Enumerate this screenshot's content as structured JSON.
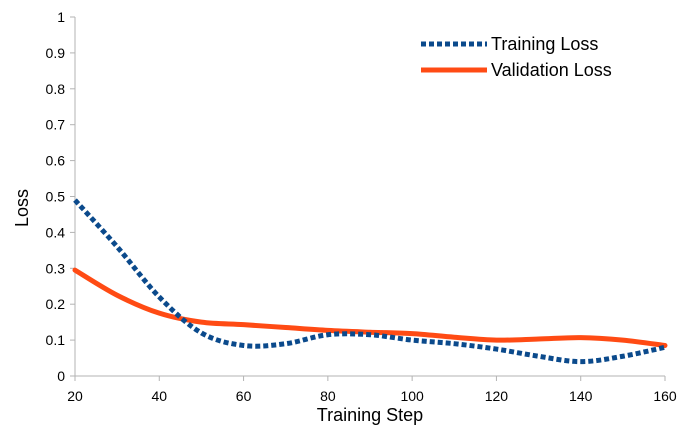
{
  "chart_data": {
    "type": "line",
    "xlabel": "Training Step",
    "ylabel": "Loss",
    "xlim": [
      20,
      160
    ],
    "ylim": [
      0,
      1
    ],
    "x_ticks": [
      "20",
      "40",
      "60",
      "80",
      "100",
      "120",
      "140",
      "160"
    ],
    "y_ticks": [
      "0",
      "0.1",
      "0.2",
      "0.3",
      "0.4",
      "0.5",
      "0.6",
      "0.7",
      "0.8",
      "0.9",
      "1"
    ],
    "grid": false,
    "legend_position": "top-right",
    "series": [
      {
        "name": "Training Loss",
        "style": "dotted",
        "color": "#0b4a8c",
        "x": [
          20,
          30,
          40,
          50,
          60,
          70,
          80,
          90,
          100,
          110,
          120,
          130,
          140,
          150,
          160
        ],
        "y": [
          0.49,
          0.36,
          0.22,
          0.12,
          0.085,
          0.09,
          0.115,
          0.115,
          0.1,
          0.09,
          0.075,
          0.055,
          0.04,
          0.055,
          0.08
        ]
      },
      {
        "name": "Validation Loss",
        "style": "solid",
        "color": "#ff4b14",
        "x": [
          20,
          30,
          40,
          50,
          60,
          70,
          80,
          90,
          100,
          110,
          120,
          130,
          140,
          150,
          160
        ],
        "y": [
          0.295,
          0.225,
          0.175,
          0.15,
          0.143,
          0.135,
          0.127,
          0.122,
          0.118,
          0.108,
          0.1,
          0.103,
          0.107,
          0.1,
          0.085
        ]
      }
    ]
  }
}
